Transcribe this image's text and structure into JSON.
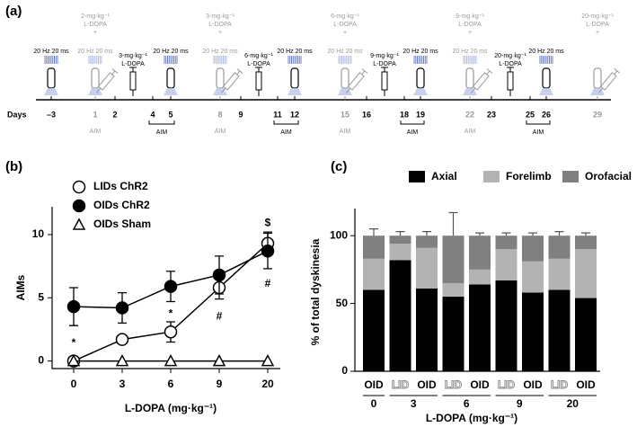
{
  "panel_labels": [
    "(a)",
    "(b)",
    "(c)"
  ],
  "timeline": {
    "label": "Days",
    "days": [
      "–3",
      "1",
      "2",
      "4",
      "5",
      "8",
      "9",
      "11",
      "12",
      "15",
      "16",
      "18",
      "19",
      "22",
      "23",
      "25",
      "26",
      "29"
    ],
    "baseline": {
      "stim": "20 Hz 20 ms"
    },
    "test_sessions": [
      {
        "dose": "2-mg·kg⁻¹",
        "drug": "L-DOPA",
        "plus": "+",
        "stim": "20 Hz 20 ms",
        "aim": "AIM"
      },
      {
        "dose": "3-mg·kg⁻¹",
        "drug": "L-DOPA",
        "plus": "+",
        "stim": "20 Hz 20 ms",
        "aim": "AIM"
      },
      {
        "dose": "6-mg·kg⁻¹",
        "drug": "L-DOPA",
        "plus": "+",
        "stim": "20 Hz 20 ms",
        "aim": "AIM"
      },
      {
        "dose": "9-mg·kg⁻¹",
        "drug": "L-DOPA",
        "plus": "+",
        "stim": "20 Hz 20 ms",
        "aim": "AIM"
      },
      {
        "dose": "20-mg·kg⁻¹",
        "drug": "L-DOPA",
        "plus": "+"
      }
    ],
    "treatments": [
      {
        "dose": "3-mg·kg⁻¹",
        "drug": "L-DOPA",
        "stim": "20 Hz 20 ms",
        "aim": "AIM"
      },
      {
        "dose": "6-mg·kg⁻¹",
        "drug": "L-DOPA",
        "stim": "20 Hz 20 ms",
        "aim": "AIM"
      },
      {
        "dose": "9-mg·kg⁻¹",
        "drug": "L-DOPA",
        "stim": "20 Hz 20 ms",
        "aim": "AIM"
      },
      {
        "dose": "20-mg·kg⁻¹",
        "drug": "L-DOPA",
        "stim": "20 Hz 20 ms",
        "aim": "AIM"
      }
    ]
  },
  "chart_data": [
    {
      "type": "line",
      "x_label": "L-DOPA (mg·kg⁻¹)",
      "y_label": "AIMs",
      "categories": [
        "0",
        "3",
        "6",
        "9",
        "20"
      ],
      "ylim": [
        -0.6,
        12.2
      ],
      "yticks": [
        0,
        5,
        10
      ],
      "legend": "upper left",
      "series": [
        {
          "name": "LIDs ChR2",
          "color": "#000000",
          "marker": "open-circle",
          "values": [
            0,
            1.7,
            2.3,
            5.8,
            9.3
          ],
          "errors": [
            0,
            0.3,
            0.8,
            0.9,
            0.9
          ]
        },
        {
          "name": "OIDs ChR2",
          "color": "#000000",
          "marker": "filled-circle",
          "values": [
            4.3,
            4.2,
            5.9,
            6.8,
            8.7
          ],
          "errors": [
            1.5,
            1.2,
            1.2,
            1.5,
            1.4
          ]
        },
        {
          "name": "OIDs Sham",
          "color": "#000000",
          "marker": "open-triangle",
          "values": [
            0,
            0,
            0,
            0,
            0
          ]
        }
      ],
      "annotations": [
        {
          "text": "*",
          "category": "0",
          "y": 1.4
        },
        {
          "text": "*",
          "category": "6",
          "y": 3.7
        },
        {
          "text": "#",
          "category": "9",
          "y": 3.5
        },
        {
          "text": "#",
          "category": "20",
          "y": 6.1
        },
        {
          "text": "$",
          "category": "20",
          "y": 10.9
        }
      ]
    },
    {
      "type": "stacked-bar",
      "x_label": "L-DOPA (mg·kg⁻¹)",
      "y_label": "% of total dyskinesia",
      "categories": [
        "OID",
        "LID",
        "OID",
        "LID",
        "OID",
        "LID",
        "OID",
        "LID",
        "OID"
      ],
      "groups": [
        "0",
        "3",
        "6",
        "9",
        "20"
      ],
      "ylim": [
        0,
        120
      ],
      "yticks": [
        0,
        50,
        100
      ],
      "legend": "top",
      "series": [
        {
          "name": "Axial",
          "color": "#000000",
          "values": [
            60,
            82,
            61,
            55,
            64,
            67,
            58,
            60,
            54
          ],
          "errors": [
            4,
            3,
            5,
            8,
            4,
            2,
            3,
            2,
            4
          ]
        },
        {
          "name": "Forelimb",
          "color": "#b3b3b3",
          "values": [
            23,
            12,
            30,
            10,
            11,
            23,
            23,
            23,
            36
          ]
        },
        {
          "name": "Orofacial",
          "color": "#808080",
          "values": [
            17,
            6,
            9,
            35,
            25,
            10,
            19,
            17,
            10
          ],
          "errors": [
            5,
            3,
            3,
            17,
            2,
            2,
            2,
            3,
            2
          ]
        }
      ]
    }
  ]
}
